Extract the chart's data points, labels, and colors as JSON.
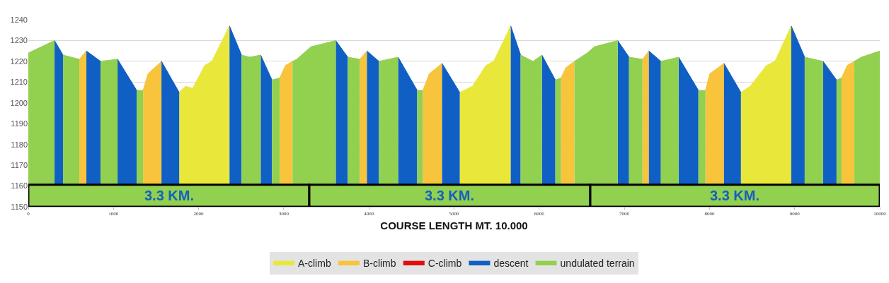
{
  "chart_data": {
    "type": "area",
    "xlabel": "COURSE LENGTH MT. 10.000",
    "xlim": [
      0,
      10000
    ],
    "xticks": [
      0,
      1000,
      2000,
      3000,
      4000,
      5000,
      6000,
      7000,
      8000,
      9000,
      10000
    ],
    "ylim": [
      1150,
      1240
    ],
    "yticks": [
      1150,
      1160,
      1170,
      1180,
      1190,
      1200,
      1210,
      1220,
      1230,
      1240
    ],
    "grid": "y",
    "legend": "bottom",
    "bands": [
      {
        "axis": "x",
        "from": 0,
        "to": 3300,
        "label": "3.3 KM.",
        "color": "#92d050"
      },
      {
        "axis": "x",
        "from": 3300,
        "to": 6600,
        "label": "3.3 KM.",
        "color": "#92d050"
      },
      {
        "axis": "x",
        "from": 6600,
        "to": 10000,
        "label": "3.3 KM.",
        "color": "#92d050"
      }
    ],
    "series": [
      {
        "name": "A-climb",
        "color": "#e9e83a",
        "x": [
          1772,
          1847,
          1930,
          2072,
          2155,
          2363
        ],
        "values": [
          1205,
          1208,
          1207,
          1218,
          1220,
          1237
        ]
      },
      {
        "color": "#e9e83a",
        "x": [
          5067,
          5216,
          5374,
          5466,
          5666
        ],
        "values": [
          1205,
          1208,
          1218,
          1220,
          1237
        ]
      },
      {
        "color": "#e9e83a",
        "x": [
          8369,
          8478,
          8669,
          8769,
          8960
        ],
        "values": [
          1205,
          1208,
          1218,
          1220,
          1237
        ]
      },
      {
        "name": "B-climb",
        "color": "#f8c43c",
        "x": [
          599,
          682
        ],
        "values": [
          1221,
          1225
        ]
      },
      {
        "color": "#f8c43c",
        "x": [
          1348,
          1406,
          1564
        ],
        "values": [
          1206,
          1214,
          1220
        ]
      },
      {
        "color": "#f8c43c",
        "x": [
          2953,
          3020,
          3103
        ],
        "values": [
          1212,
          1218,
          1220
        ]
      },
      {
        "color": "#f8c43c",
        "x": [
          3893,
          3977
        ],
        "values": [
          1221,
          1225
        ]
      },
      {
        "color": "#f8c43c",
        "x": [
          4634,
          4709,
          4859
        ],
        "values": [
          1206,
          1214,
          1219
        ]
      },
      {
        "color": "#f8c43c",
        "x": [
          6256,
          6314,
          6414
        ],
        "values": [
          1212,
          1217,
          1220
        ]
      },
      {
        "color": "#f8c43c",
        "x": [
          7213,
          7288
        ],
        "values": [
          1221,
          1225
        ]
      },
      {
        "color": "#f8c43c",
        "x": [
          7953,
          8003,
          8170
        ],
        "values": [
          1206,
          1214,
          1219
        ]
      },
      {
        "color": "#f8c43c",
        "x": [
          9551,
          9617,
          9700
        ],
        "values": [
          1212,
          1218,
          1220
        ]
      },
      {
        "name": "C-climb",
        "color": "#e00d0d"
      },
      {
        "name": "descent",
        "color": "#0f5fc4",
        "x": [
          308,
          408
        ],
        "values": [
          1230,
          1223
        ]
      },
      {
        "color": "#0f5fc4",
        "x": [
          682,
          849
        ],
        "values": [
          1225,
          1220
        ]
      },
      {
        "color": "#0f5fc4",
        "x": [
          1048,
          1273
        ],
        "values": [
          1221,
          1206
        ]
      },
      {
        "color": "#0f5fc4",
        "x": [
          1564,
          1772
        ],
        "values": [
          1220,
          1205
        ]
      },
      {
        "color": "#0f5fc4",
        "x": [
          2363,
          2504
        ],
        "values": [
          1237,
          1223
        ]
      },
      {
        "color": "#0f5fc4",
        "x": [
          2729,
          2862
        ],
        "values": [
          1223,
          1211
        ]
      },
      {
        "color": "#0f5fc4",
        "x": [
          3611,
          3752
        ],
        "values": [
          1230,
          1222
        ]
      },
      {
        "color": "#0f5fc4",
        "x": [
          3977,
          4118
        ],
        "values": [
          1225,
          1220
        ]
      },
      {
        "color": "#0f5fc4",
        "x": [
          4343,
          4567
        ],
        "values": [
          1222,
          1206
        ]
      },
      {
        "color": "#0f5fc4",
        "x": [
          4859,
          5067
        ],
        "values": [
          1219,
          1205
        ]
      },
      {
        "color": "#0f5fc4",
        "x": [
          5666,
          5782
        ],
        "values": [
          1237,
          1223
        ]
      },
      {
        "color": "#0f5fc4",
        "x": [
          6032,
          6190
        ],
        "values": [
          1223,
          1211
        ]
      },
      {
        "color": "#0f5fc4",
        "x": [
          6922,
          7055
        ],
        "values": [
          1230,
          1222
        ]
      },
      {
        "color": "#0f5fc4",
        "x": [
          7288,
          7429
        ],
        "values": [
          1225,
          1220
        ]
      },
      {
        "color": "#0f5fc4",
        "x": [
          7637,
          7870
        ],
        "values": [
          1222,
          1206
        ]
      },
      {
        "color": "#0f5fc4",
        "x": [
          8170,
          8369
        ],
        "values": [
          1219,
          1205
        ]
      },
      {
        "color": "#0f5fc4",
        "x": [
          8960,
          9118
        ],
        "values": [
          1237,
          1222
        ]
      },
      {
        "color": "#0f5fc4",
        "x": [
          9334,
          9492
        ],
        "values": [
          1220,
          1211
        ]
      },
      {
        "name": "undulated terrain",
        "color": "#92d050",
        "x": [
          0,
          308
        ],
        "values": [
          1224,
          1230
        ]
      },
      {
        "color": "#92d050",
        "x": [
          408,
          599
        ],
        "values": [
          1223,
          1221
        ]
      },
      {
        "color": "#92d050",
        "x": [
          849,
          1048
        ],
        "values": [
          1220,
          1221
        ]
      },
      {
        "color": "#92d050",
        "x": [
          1273,
          1348
        ],
        "values": [
          1206,
          1206
        ]
      },
      {
        "color": "#92d050",
        "x": [
          2504,
          2600,
          2729
        ],
        "values": [
          1223,
          1222,
          1223
        ]
      },
      {
        "color": "#92d050",
        "x": [
          2862,
          2953
        ],
        "values": [
          1211,
          1212
        ]
      },
      {
        "color": "#92d050",
        "x": [
          3103,
          3153,
          3320,
          3611
        ],
        "values": [
          1220,
          1221,
          1227,
          1230
        ]
      },
      {
        "color": "#92d050",
        "x": [
          3752,
          3893
        ],
        "values": [
          1222,
          1221
        ]
      },
      {
        "color": "#92d050",
        "x": [
          4118,
          4343
        ],
        "values": [
          1220,
          1222
        ]
      },
      {
        "color": "#92d050",
        "x": [
          4567,
          4634
        ],
        "values": [
          1206,
          1206
        ]
      },
      {
        "color": "#92d050",
        "x": [
          5782,
          5927,
          6032
        ],
        "values": [
          1223,
          1220,
          1223
        ]
      },
      {
        "color": "#92d050",
        "x": [
          6190,
          6256
        ],
        "values": [
          1211,
          1212
        ]
      },
      {
        "color": "#92d050",
        "x": [
          6414,
          6564,
          6647,
          6922
        ],
        "values": [
          1220,
          1224,
          1227,
          1230
        ]
      },
      {
        "color": "#92d050",
        "x": [
          7055,
          7213
        ],
        "values": [
          1222,
          1221
        ]
      },
      {
        "color": "#92d050",
        "x": [
          7429,
          7637
        ],
        "values": [
          1220,
          1222
        ]
      },
      {
        "color": "#92d050",
        "x": [
          7870,
          7953
        ],
        "values": [
          1206,
          1206
        ]
      },
      {
        "color": "#92d050",
        "x": [
          9118,
          9334
        ],
        "values": [
          1222,
          1220
        ]
      },
      {
        "color": "#92d050",
        "x": [
          9492,
          9551
        ],
        "values": [
          1211,
          1212
        ]
      },
      {
        "color": "#92d050",
        "x": [
          9700,
          9784,
          10000
        ],
        "values": [
          1220,
          1222,
          1225
        ]
      }
    ]
  }
}
